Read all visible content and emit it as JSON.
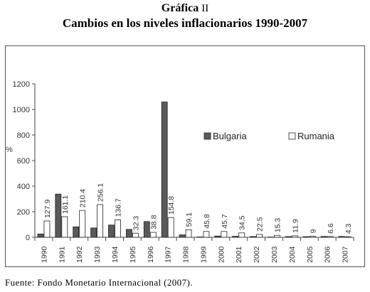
{
  "heading": {
    "figure_label": "Gráfica",
    "figure_number": "II",
    "title": "Cambios en los niveles inflacionarios 1990-2007"
  },
  "chart_data": {
    "type": "bar",
    "title": "Cambios en los niveles inflacionarios 1990-2007",
    "ylabel": "%",
    "xlabel": "",
    "ylim": [
      0,
      1200
    ],
    "yticks": [
      0,
      200,
      400,
      600,
      800,
      1000,
      1200
    ],
    "grid": false,
    "legend_position": "right",
    "categories": [
      "1990",
      "1991",
      "1992",
      "1993",
      "1994",
      "1995",
      "1996",
      "1997",
      "1998",
      "1999",
      "2000",
      "2001",
      "2002",
      "2003",
      "2004",
      "2005",
      "2006",
      "2007"
    ],
    "series": [
      {
        "name": "Bulgaria",
        "color": "#5a5a5a",
        "values": [
          26,
          338,
          82,
          73,
          96,
          62,
          123,
          1058,
          19,
          3,
          10,
          8,
          6,
          2,
          6,
          5,
          7,
          7
        ]
      },
      {
        "name": "Rumania",
        "color": "#ffffff",
        "values": [
          127.9,
          161.1,
          210.4,
          256.1,
          136.7,
          32.3,
          38.8,
          154.8,
          59.1,
          45.8,
          45.7,
          34.5,
          22.5,
          15.3,
          11.9,
          9,
          6.6,
          4.3
        ],
        "labels": [
          "127.9",
          "161.1",
          "210.4",
          "256.1",
          "136.7",
          "32.3",
          "38.8",
          "154.8",
          "59.1",
          "45.8",
          "45.7",
          "34.5",
          "22.5",
          "15.3",
          "11.9",
          "9",
          "6.6",
          "4.3"
        ]
      }
    ]
  },
  "source_note": "Fuente: Fondo Monetario Internacional (2007)."
}
